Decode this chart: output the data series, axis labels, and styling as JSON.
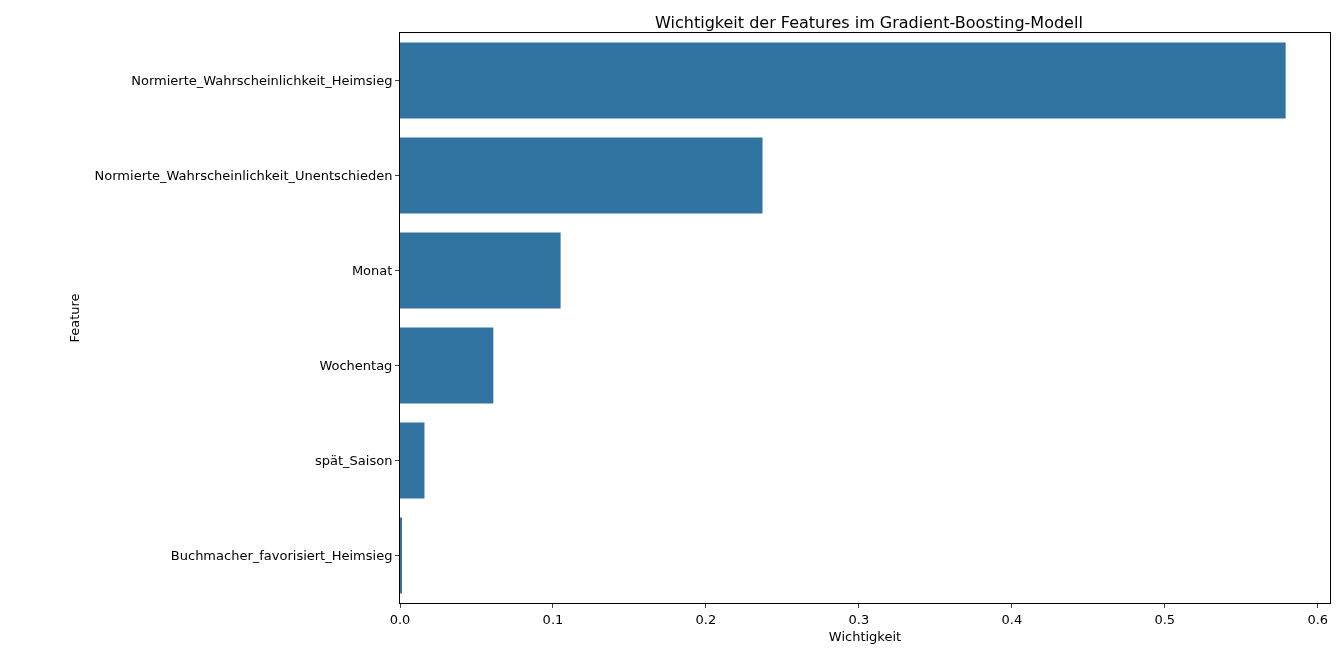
{
  "chart_data": {
    "type": "bar",
    "orientation": "horizontal",
    "title": "Wichtigkeit der Features im Gradient-Boosting-Modell",
    "xlabel": "Wichtigkeit",
    "ylabel": "Feature",
    "categories": [
      "Normierte_Wahrscheinlichkeit_Heimsieg",
      "Normierte_Wahrscheinlichkeit_Unentschieden",
      "Monat",
      "Wochentag",
      "spät_Saison",
      "Buchmacher_favorisiert_Heimsieg"
    ],
    "values": [
      0.579,
      0.237,
      0.105,
      0.061,
      0.016,
      0.001
    ],
    "color": "#3274a1",
    "xlim": [
      0,
      0.608
    ],
    "xticks": [
      {
        "value": 0,
        "label": "0.0"
      },
      0.1,
      0.2,
      0.3,
      0.4,
      0.5,
      0.6
    ],
    "grid": false,
    "legend": false
  }
}
